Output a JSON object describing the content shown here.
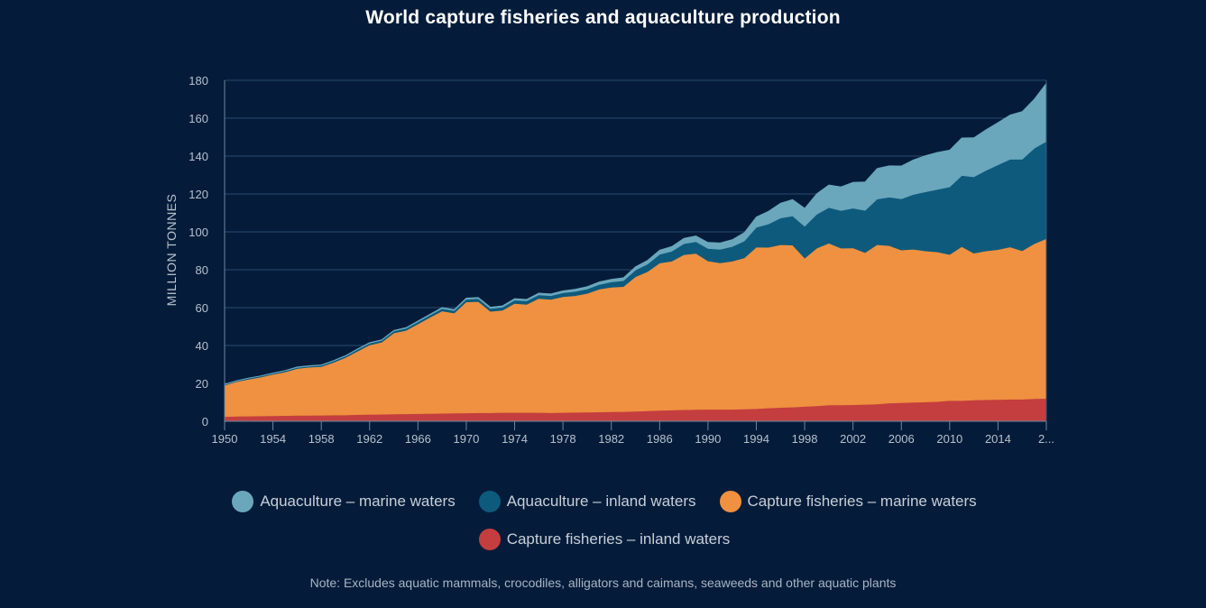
{
  "chart_data": {
    "type": "area",
    "stacked": true,
    "title": "World capture fisheries and aquaculture production",
    "ylabel": "MILLION TONNES",
    "xlabel": "",
    "ylim": [
      0,
      180
    ],
    "yticks": [
      "0",
      "20",
      "40",
      "60",
      "80",
      "100",
      "120",
      "140",
      "160",
      "180"
    ],
    "xticks": [
      "1950",
      "1954",
      "1958",
      "1962",
      "1966",
      "1970",
      "1974",
      "1978",
      "1982",
      "1986",
      "1990",
      "1994",
      "1998",
      "2002",
      "2006",
      "2010",
      "2014",
      "2..."
    ],
    "grid": "horizontal",
    "legend_position": "bottom",
    "note": "Note: Excludes aquatic mammals, crocodiles, alligators and caimans, seaweeds and other aquatic plants",
    "x": [
      1950,
      1951,
      1952,
      1953,
      1954,
      1955,
      1956,
      1957,
      1958,
      1959,
      1960,
      1961,
      1962,
      1963,
      1964,
      1965,
      1966,
      1967,
      1968,
      1969,
      1970,
      1971,
      1972,
      1973,
      1974,
      1975,
      1976,
      1977,
      1978,
      1979,
      1980,
      1981,
      1982,
      1983,
      1984,
      1985,
      1986,
      1987,
      1988,
      1989,
      1990,
      1991,
      1992,
      1993,
      1994,
      1995,
      1996,
      1997,
      1998,
      1999,
      2000,
      2001,
      2002,
      2003,
      2004,
      2005,
      2006,
      2007,
      2008,
      2009,
      2010,
      2011,
      2012,
      2013,
      2014,
      2015,
      2016,
      2017,
      2018
    ],
    "series": [
      {
        "name": "Capture fisheries – inland waters",
        "color": "#c43e3f",
        "values": [
          2.5,
          2.6,
          2.7,
          2.8,
          2.9,
          3.0,
          3.1,
          3.1,
          3.2,
          3.3,
          3.3,
          3.5,
          3.6,
          3.7,
          3.8,
          3.9,
          4.0,
          4.1,
          4.2,
          4.3,
          4.4,
          4.5,
          4.5,
          4.6,
          4.6,
          4.6,
          4.6,
          4.5,
          4.6,
          4.7,
          4.8,
          4.9,
          5.0,
          5.1,
          5.3,
          5.5,
          5.7,
          5.9,
          6.1,
          6.2,
          6.3,
          6.3,
          6.3,
          6.5,
          6.6,
          7.0,
          7.3,
          7.5,
          7.8,
          8.1,
          8.6,
          8.6,
          8.7,
          8.9,
          9.1,
          9.6,
          9.8,
          10.0,
          10.2,
          10.4,
          11.0,
          10.9,
          11.2,
          11.4,
          11.5,
          11.6,
          11.6,
          11.9,
          12.0
        ]
      },
      {
        "name": "Capture fisheries – marine waters",
        "color": "#ef9140",
        "values": [
          16.5,
          18.3,
          19.5,
          20.5,
          21.9,
          23.0,
          24.7,
          25.4,
          25.6,
          27.7,
          30.3,
          33.5,
          36.7,
          38.0,
          42.8,
          44.0,
          47.4,
          50.8,
          54.0,
          52.8,
          58.6,
          58.7,
          53.5,
          54.0,
          57.6,
          57.1,
          60.2,
          59.8,
          61.1,
          61.6,
          62.7,
          64.8,
          65.7,
          66.0,
          71.0,
          73.5,
          77.8,
          78.6,
          81.8,
          82.4,
          78.3,
          77.3,
          78.2,
          79.7,
          85.3,
          84.8,
          85.9,
          85.5,
          78.3,
          83.3,
          85.4,
          82.8,
          82.8,
          80.1,
          84.1,
          83.1,
          80.6,
          80.8,
          79.7,
          79.0,
          77.0,
          81.3,
          77.5,
          78.5,
          79.1,
          80.4,
          78.4,
          81.8,
          84.4
        ]
      },
      {
        "name": "Aquaculture – inland waters",
        "color": "#0e5a7d",
        "values": [
          0.4,
          0.4,
          0.5,
          0.5,
          0.5,
          0.6,
          0.6,
          0.6,
          0.7,
          0.8,
          0.8,
          0.9,
          0.9,
          1.0,
          1.0,
          1.1,
          1.1,
          1.2,
          1.3,
          1.3,
          1.4,
          1.5,
          1.5,
          1.6,
          1.7,
          1.8,
          1.9,
          2.0,
          2.1,
          2.2,
          2.3,
          2.5,
          2.8,
          3.1,
          3.5,
          4.0,
          4.6,
          5.2,
          5.8,
          6.2,
          6.6,
          7.1,
          7.7,
          8.9,
          10.5,
          12.3,
          14.1,
          15.4,
          16.8,
          17.9,
          18.8,
          19.8,
          21.0,
          22.3,
          24.1,
          25.6,
          27.0,
          28.9,
          31.2,
          33.0,
          35.7,
          37.5,
          40.3,
          42.5,
          44.8,
          46.3,
          48.3,
          50.4,
          51.3
        ]
      },
      {
        "name": "Aquaculture – marine waters",
        "color": "#6aa7bc",
        "values": [
          0.2,
          0.2,
          0.2,
          0.2,
          0.2,
          0.2,
          0.3,
          0.3,
          0.3,
          0.3,
          0.3,
          0.4,
          0.4,
          0.4,
          0.4,
          0.5,
          0.5,
          0.5,
          0.6,
          0.6,
          0.7,
          0.7,
          0.8,
          0.8,
          0.9,
          0.9,
          1.0,
          1.0,
          1.1,
          1.2,
          1.3,
          1.4,
          1.5,
          1.6,
          1.8,
          2.0,
          2.3,
          2.6,
          2.9,
          3.1,
          3.3,
          3.5,
          3.7,
          4.5,
          5.5,
          6.8,
          7.9,
          8.7,
          9.6,
          10.9,
          12.0,
          12.6,
          13.7,
          15.1,
          16.2,
          16.6,
          17.4,
          18.3,
          19.2,
          19.6,
          19.5,
          19.9,
          20.7,
          21.5,
          22.3,
          23.4,
          25.2,
          26.0,
          30.8
        ]
      }
    ]
  }
}
